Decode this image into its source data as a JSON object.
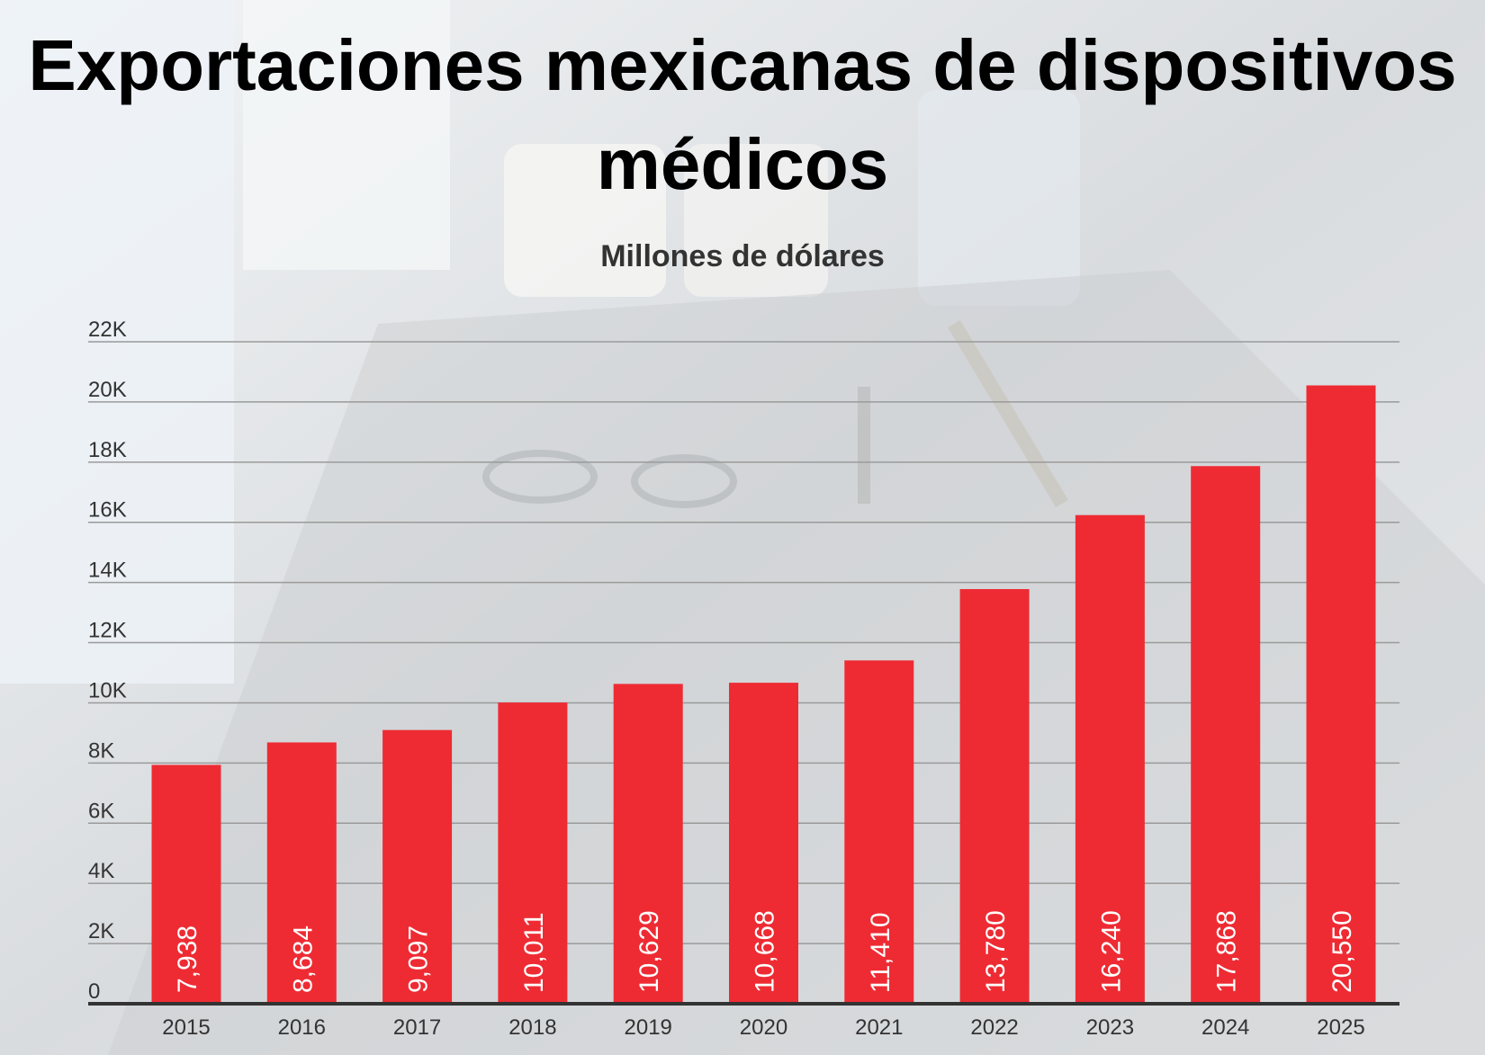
{
  "chart_data": {
    "type": "bar",
    "title": "Exportaciones mexicanas de dispositivos médicos",
    "subtitle": "Millones de dólares",
    "categories": [
      "2015",
      "2016",
      "2017",
      "2018",
      "2019",
      "2020",
      "2021",
      "2022",
      "2023",
      "2024",
      "2025"
    ],
    "values": [
      7938,
      8684,
      9097,
      10011,
      10629,
      10668,
      11410,
      13780,
      16240,
      17868,
      20550
    ],
    "value_labels": [
      "7,938",
      "8,684",
      "9,097",
      "10,011",
      "10,629",
      "10,668",
      "11,410",
      "13,780",
      "16,240",
      "17,868",
      "20,550"
    ],
    "ylim": [
      0,
      22000
    ],
    "yticks": [
      0,
      2000,
      4000,
      6000,
      8000,
      10000,
      12000,
      14000,
      16000,
      18000,
      20000,
      22000
    ],
    "ytick_labels": [
      "0",
      "2K",
      "4K",
      "6K",
      "8K",
      "10K",
      "12K",
      "14K",
      "16K",
      "18K",
      "20K",
      "22K"
    ],
    "grid": true,
    "bar_color": "#ee2b33",
    "gridline_color": "#9a9a9a",
    "axis_color": "#333333"
  }
}
